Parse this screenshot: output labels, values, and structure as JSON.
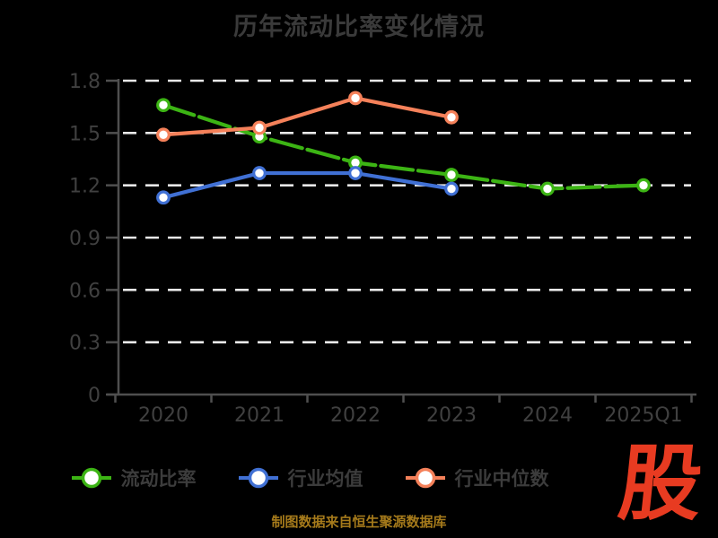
{
  "title": "历年流动比率变化情况",
  "footer": {
    "text": "制图数据来自恒生聚源数据库",
    "color": "#a57a1b"
  },
  "logo": {
    "text": "股",
    "color": "#e83b21"
  },
  "chart_data": {
    "type": "line",
    "title": "历年流动比率变化情况",
    "xlabel": "",
    "ylabel": "",
    "categories": [
      "2020",
      "2021",
      "2022",
      "2023",
      "2024",
      "2025Q1"
    ],
    "series": [
      {
        "name": "流动比率",
        "color": "#3cb414",
        "dashed": true,
        "values": [
          1.66,
          1.48,
          1.33,
          1.26,
          1.18,
          1.2
        ]
      },
      {
        "name": "行业均值",
        "color": "#4070d4",
        "dashed": false,
        "values": [
          1.13,
          1.27,
          1.27,
          1.18,
          null,
          null
        ]
      },
      {
        "name": "行业中位数",
        "color": "#f5815a",
        "dashed": false,
        "values": [
          1.49,
          1.53,
          1.7,
          1.59,
          null,
          null
        ]
      }
    ],
    "ylim": [
      0,
      1.8
    ],
    "yticks": [
      {
        "value": 0,
        "label": "0"
      },
      {
        "value": 0.3,
        "label": "0.3"
      },
      {
        "value": 0.6,
        "label": "0.6"
      },
      {
        "value": 0.9,
        "label": "0.9"
      },
      {
        "value": 1.2,
        "label": "1.2"
      },
      {
        "value": 1.5,
        "label": "1.5"
      },
      {
        "value": 1.8,
        "label": "1.8"
      }
    ],
    "grid": true,
    "gridline_style": "dashed",
    "gridline_color": "#e8e8e8",
    "axis_color": "#4f4f4f",
    "tick_label_color": "#404040",
    "marker": "white-filled-circle",
    "legend_position": "bottom",
    "background": "#000000"
  }
}
